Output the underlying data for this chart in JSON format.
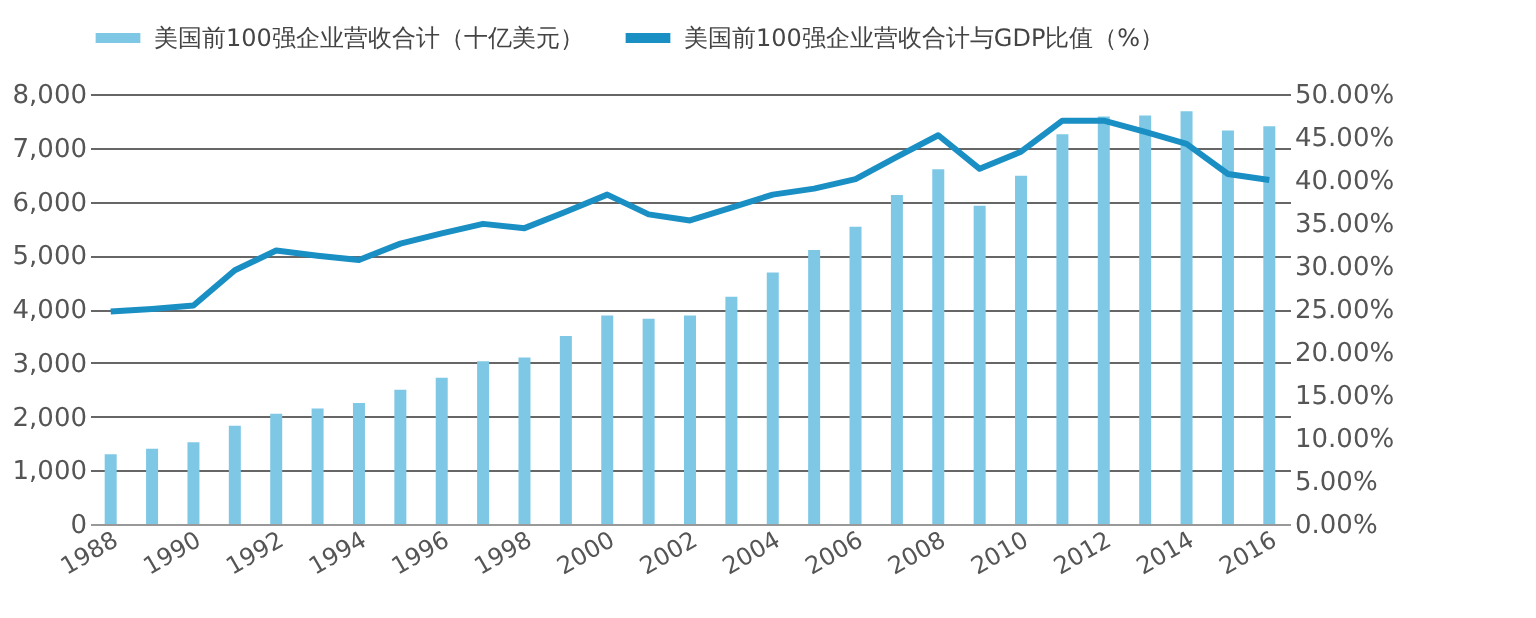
{
  "chart_data": {
    "type": "bar",
    "categories": [
      "1988",
      null,
      "1990",
      null,
      "1992",
      null,
      "1994",
      null,
      "1996",
      null,
      "1998",
      null,
      "2000",
      null,
      "2002",
      null,
      "2004",
      null,
      "2006",
      null,
      "2008",
      null,
      "2010",
      null,
      "2012",
      null,
      "2014",
      null,
      "2016"
    ],
    "series": [
      {
        "name": "美国前100强企业营收合计（十亿美元）",
        "color": "#7ec8e6",
        "values": [
          1300,
          1400,
          1520,
          1830,
          2050,
          2150,
          2250,
          2500,
          2720,
          3030,
          3100,
          3500,
          3880,
          3820,
          3880,
          4230,
          4680,
          5100,
          5530,
          6120,
          6600,
          5920,
          6480,
          7250,
          7580,
          7600,
          7680,
          7320,
          7400
        ]
      },
      {
        "name": "美国前100强企业营收合计与GDP比值（%）",
        "type": "line",
        "axis": "y2",
        "color": "#1a8fc4",
        "values": [
          24.7,
          25.0,
          25.4,
          29.5,
          31.8,
          31.2,
          30.7,
          32.6,
          33.8,
          34.9,
          34.4,
          36.3,
          38.3,
          36.0,
          35.3,
          36.8,
          38.3,
          39.0,
          40.1,
          42.7,
          45.2,
          41.3,
          43.3,
          46.9,
          46.9,
          45.6,
          44.2,
          40.7,
          40.0
        ]
      }
    ],
    "ylim": [
      0,
      8000
    ],
    "yticks": [
      {
        "value": 0,
        "label": "0"
      },
      {
        "value": 1000,
        "label": "1,000"
      },
      {
        "value": 2000,
        "label": "2,000"
      },
      {
        "value": 3000,
        "label": "3,000"
      },
      {
        "value": 4000,
        "label": "4,000"
      },
      {
        "value": 5000,
        "label": "5,000"
      },
      {
        "value": 6000,
        "label": "6,000"
      },
      {
        "value": 7000,
        "label": "7,000"
      },
      {
        "value": 8000,
        "label": "8,000"
      }
    ],
    "y2lim": [
      0,
      50
    ],
    "y2ticks": [
      {
        "value": 0,
        "label": "0.00%"
      },
      {
        "value": 5,
        "label": "5.00%"
      },
      {
        "value": 10,
        "label": "10.00%"
      },
      {
        "value": 15,
        "label": "15.00%"
      },
      {
        "value": 20,
        "label": "20.00%"
      },
      {
        "value": 25,
        "label": "25.00%"
      },
      {
        "value": 30,
        "label": "30.00%"
      },
      {
        "value": 35,
        "label": "35.00%"
      },
      {
        "value": 40,
        "label": "40.00%"
      },
      {
        "value": 45,
        "label": "45.00%"
      },
      {
        "value": 50,
        "label": "50.00%"
      }
    ],
    "grid": "y",
    "legend": "top",
    "line_style": "solid",
    "marker": "none"
  }
}
